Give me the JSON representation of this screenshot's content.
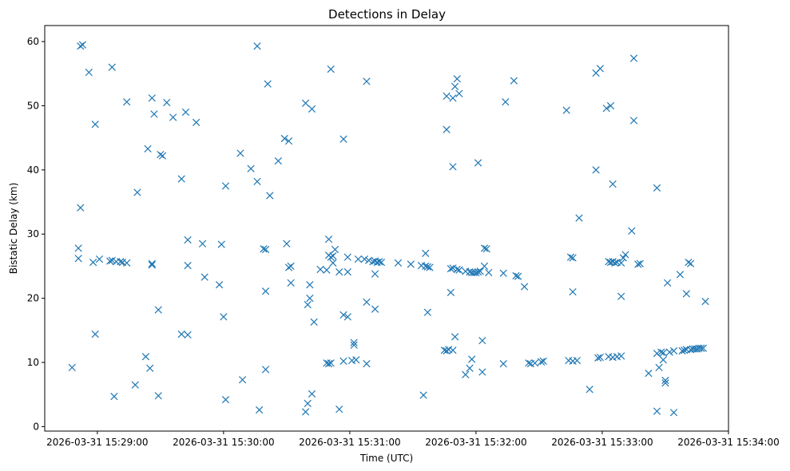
{
  "chart_data": {
    "type": "scatter",
    "title": "Detections in Delay",
    "xlabel": "Time (UTC)",
    "ylabel": "Bistatic Delay (km)",
    "marker": "x",
    "color": "#1f77b4",
    "grid": false,
    "legend": "none",
    "x_unit": "UTC time (HH:MM:SS) on 2026-03-31",
    "xlim": [
      "15:28:35",
      "15:34:00"
    ],
    "ylim": [
      -0.7,
      62.5
    ],
    "xticks": [
      {
        "value": "15:29:00",
        "label": "2026-03-31 15:29:00"
      },
      {
        "value": "15:30:00",
        "label": "2026-03-31 15:30:00"
      },
      {
        "value": "15:31:00",
        "label": "2026-03-31 15:31:00"
      },
      {
        "value": "15:32:00",
        "label": "2026-03-31 15:32:00"
      },
      {
        "value": "15:33:00",
        "label": "2026-03-31 15:33:00"
      },
      {
        "value": "15:34:00",
        "label": "2026-03-31 15:34:00"
      }
    ],
    "yticks": [
      0,
      10,
      20,
      30,
      40,
      50,
      60
    ],
    "points": [
      [
        "15:28:48",
        9.2
      ],
      [
        "15:28:51",
        27.8
      ],
      [
        "15:28:51",
        26.2
      ],
      [
        "15:28:52",
        59.3
      ],
      [
        "15:28:53",
        59.5
      ],
      [
        "15:28:52",
        34.1
      ],
      [
        "15:28:56",
        55.2
      ],
      [
        "15:28:59",
        47.1
      ],
      [
        "15:28:58",
        25.6
      ],
      [
        "15:28:59",
        14.4
      ],
      [
        "15:29:01",
        26.1
      ],
      [
        "15:29:06",
        25.8
      ],
      [
        "15:29:07",
        25.9
      ],
      [
        "15:29:09",
        25.7
      ],
      [
        "15:29:11",
        25.7
      ],
      [
        "15:29:12",
        25.6
      ],
      [
        "15:29:14",
        25.5
      ],
      [
        "15:29:07",
        56.0
      ],
      [
        "15:29:08",
        4.7
      ],
      [
        "15:29:14",
        50.6
      ],
      [
        "15:29:19",
        36.5
      ],
      [
        "15:29:18",
        6.5
      ],
      [
        "15:29:24",
        43.3
      ],
      [
        "15:29:23",
        10.9
      ],
      [
        "15:29:25",
        9.1
      ],
      [
        "15:29:26",
        51.2
      ],
      [
        "15:29:27",
        48.7
      ],
      [
        "15:29:26",
        25.4
      ],
      [
        "15:29:26",
        25.2
      ],
      [
        "15:29:29",
        18.2
      ],
      [
        "15:29:29",
        4.8
      ],
      [
        "15:29:30",
        42.4
      ],
      [
        "15:29:31",
        42.2
      ],
      [
        "15:29:33",
        50.5
      ],
      [
        "15:29:36",
        48.2
      ],
      [
        "15:29:40",
        38.6
      ],
      [
        "15:29:40",
        14.4
      ],
      [
        "15:29:42",
        49.0
      ],
      [
        "15:29:43",
        29.1
      ],
      [
        "15:29:43",
        25.1
      ],
      [
        "15:29:43",
        14.3
      ],
      [
        "15:29:47",
        47.4
      ],
      [
        "15:29:50",
        28.5
      ],
      [
        "15:29:51",
        23.3
      ],
      [
        "15:29:58",
        22.1
      ],
      [
        "15:29:59",
        28.4
      ],
      [
        "15:30:00",
        17.1
      ],
      [
        "15:30:01",
        37.5
      ],
      [
        "15:30:01",
        4.2
      ],
      [
        "15:30:08",
        42.6
      ],
      [
        "15:30:09",
        7.3
      ],
      [
        "15:30:13",
        40.2
      ],
      [
        "15:30:16",
        59.3
      ],
      [
        "15:30:16",
        38.2
      ],
      [
        "15:30:17",
        2.6
      ],
      [
        "15:30:19",
        27.7
      ],
      [
        "15:30:20",
        27.6
      ],
      [
        "15:30:20",
        21.1
      ],
      [
        "15:30:20",
        8.9
      ],
      [
        "15:30:21",
        53.4
      ],
      [
        "15:30:22",
        36.0
      ],
      [
        "15:30:26",
        41.4
      ],
      [
        "15:30:29",
        44.9
      ],
      [
        "15:30:30",
        28.5
      ],
      [
        "15:30:31",
        44.5
      ],
      [
        "15:30:32",
        25.0
      ],
      [
        "15:30:31",
        24.8
      ],
      [
        "15:30:32",
        22.4
      ],
      [
        "15:30:39",
        50.4
      ],
      [
        "15:30:40",
        19.0
      ],
      [
        "15:30:39",
        2.3
      ],
      [
        "15:30:40",
        3.6
      ],
      [
        "15:30:41",
        20.0
      ],
      [
        "15:30:42",
        49.5
      ],
      [
        "15:30:41",
        22.1
      ],
      [
        "15:30:42",
        5.1
      ],
      [
        "15:30:43",
        16.3
      ],
      [
        "15:30:46",
        24.5
      ],
      [
        "15:30:49",
        24.4
      ],
      [
        "15:30:50",
        29.2
      ],
      [
        "15:30:50",
        26.7
      ],
      [
        "15:30:51",
        26.4
      ],
      [
        "15:30:52",
        26.6
      ],
      [
        "15:30:52",
        25.5
      ],
      [
        "15:30:49",
        9.9
      ],
      [
        "15:30:50",
        9.8
      ],
      [
        "15:30:51",
        9.9
      ],
      [
        "15:30:51",
        55.7
      ],
      [
        "15:30:53",
        27.6
      ],
      [
        "15:30:55",
        24.1
      ],
      [
        "15:30:55",
        2.7
      ],
      [
        "15:30:57",
        44.8
      ],
      [
        "15:30:57",
        17.4
      ],
      [
        "15:30:57",
        10.2
      ],
      [
        "15:30:59",
        17.1
      ],
      [
        "15:30:59",
        24.1
      ],
      [
        "15:30:59",
        26.4
      ],
      [
        "15:31:02",
        12.7
      ],
      [
        "15:31:02",
        13.1
      ],
      [
        "15:31:01",
        10.3
      ],
      [
        "15:31:03",
        10.4
      ],
      [
        "15:31:04",
        26.1
      ],
      [
        "15:31:07",
        26.1
      ],
      [
        "15:31:09",
        25.9
      ],
      [
        "15:31:11",
        25.7
      ],
      [
        "15:31:12",
        25.8
      ],
      [
        "15:31:13",
        25.6
      ],
      [
        "15:31:14",
        25.7
      ],
      [
        "15:31:15",
        25.6
      ],
      [
        "15:31:08",
        53.8
      ],
      [
        "15:31:08",
        19.4
      ],
      [
        "15:31:08",
        9.8
      ],
      [
        "15:31:12",
        18.3
      ],
      [
        "15:31:12",
        23.8
      ],
      [
        "15:31:23",
        25.5
      ],
      [
        "15:31:29",
        25.3
      ],
      [
        "15:31:34",
        25.1
      ],
      [
        "15:31:36",
        27.0
      ],
      [
        "15:31:36",
        25.0
      ],
      [
        "15:31:37",
        24.9
      ],
      [
        "15:31:38",
        24.8
      ],
      [
        "15:31:35",
        4.9
      ],
      [
        "15:31:37",
        17.8
      ],
      [
        "15:31:46",
        51.5
      ],
      [
        "15:31:46",
        46.3
      ],
      [
        "15:31:49",
        51.2
      ],
      [
        "15:31:50",
        53.0
      ],
      [
        "15:31:51",
        54.2
      ],
      [
        "15:31:52",
        51.9
      ],
      [
        "15:31:49",
        40.5
      ],
      [
        "15:31:50",
        14.0
      ],
      [
        "15:31:48",
        20.9
      ],
      [
        "15:31:48",
        24.6
      ],
      [
        "15:31:49",
        24.7
      ],
      [
        "15:31:51",
        24.5
      ],
      [
        "15:31:55",
        24.2
      ],
      [
        "15:31:57",
        24.1
      ],
      [
        "15:31:58",
        24.0
      ],
      [
        "15:31:59",
        24.0
      ],
      [
        "15:32:00",
        24.0
      ],
      [
        "15:32:01",
        24.1
      ],
      [
        "15:32:02",
        24.2
      ],
      [
        "15:31:45",
        11.9
      ],
      [
        "15:31:46",
        11.8
      ],
      [
        "15:31:47",
        12.0
      ],
      [
        "15:31:49",
        11.9
      ],
      [
        "15:31:52",
        24.4
      ],
      [
        "15:31:55",
        8.1
      ],
      [
        "15:31:57",
        9.1
      ],
      [
        "15:31:58",
        10.5
      ],
      [
        "15:32:01",
        41.1
      ],
      [
        "15:32:03",
        13.4
      ],
      [
        "15:32:03",
        8.5
      ],
      [
        "15:32:04",
        27.8
      ],
      [
        "15:32:04",
        25.0
      ],
      [
        "15:32:05",
        27.7
      ],
      [
        "15:32:06",
        24.0
      ],
      [
        "15:32:14",
        50.6
      ],
      [
        "15:32:13",
        23.9
      ],
      [
        "15:32:13",
        9.8
      ],
      [
        "15:32:18",
        53.9
      ],
      [
        "15:32:19",
        23.5
      ],
      [
        "15:32:20",
        23.4
      ],
      [
        "15:32:23",
        21.8
      ],
      [
        "15:32:25",
        9.9
      ],
      [
        "15:32:26",
        9.8
      ],
      [
        "15:32:28",
        9.9
      ],
      [
        "15:32:31",
        10.1
      ],
      [
        "15:32:32",
        10.2
      ],
      [
        "15:32:43",
        49.3
      ],
      [
        "15:32:44",
        10.3
      ],
      [
        "15:32:46",
        10.2
      ],
      [
        "15:32:45",
        26.4
      ],
      [
        "15:32:46",
        26.3
      ],
      [
        "15:32:46",
        21.0
      ],
      [
        "15:32:48",
        10.3
      ],
      [
        "15:32:49",
        32.5
      ],
      [
        "15:32:54",
        5.8
      ],
      [
        "15:32:57",
        40.0
      ],
      [
        "15:32:57",
        55.1
      ],
      [
        "15:32:59",
        55.8
      ],
      [
        "15:32:58",
        10.7
      ],
      [
        "15:32:59",
        10.8
      ],
      [
        "15:33:02",
        49.6
      ],
      [
        "15:33:04",
        50.0
      ],
      [
        "15:33:03",
        25.7
      ],
      [
        "15:33:04",
        25.6
      ],
      [
        "15:33:05",
        25.7
      ],
      [
        "15:33:06",
        25.5
      ],
      [
        "15:33:07",
        25.6
      ],
      [
        "15:33:09",
        25.5
      ],
      [
        "15:33:05",
        37.8
      ],
      [
        "15:33:03",
        10.9
      ],
      [
        "15:33:05",
        10.8
      ],
      [
        "15:33:07",
        10.9
      ],
      [
        "15:33:09",
        11.0
      ],
      [
        "15:33:09",
        20.3
      ],
      [
        "15:33:10",
        26.3
      ],
      [
        "15:33:11",
        26.8
      ],
      [
        "15:33:14",
        30.5
      ],
      [
        "15:33:15",
        57.4
      ],
      [
        "15:33:15",
        47.7
      ],
      [
        "15:33:17",
        25.3
      ],
      [
        "15:33:18",
        25.4
      ],
      [
        "15:33:22",
        8.3
      ],
      [
        "15:33:26",
        37.2
      ],
      [
        "15:33:26",
        11.4
      ],
      [
        "15:33:26",
        2.4
      ],
      [
        "15:33:27",
        9.2
      ],
      [
        "15:33:28",
        11.6
      ],
      [
        "15:33:29",
        10.4
      ],
      [
        "15:33:29",
        11.5
      ],
      [
        "15:33:30",
        7.2
      ],
      [
        "15:33:30",
        6.8
      ],
      [
        "15:33:31",
        22.4
      ],
      [
        "15:33:32",
        11.6
      ],
      [
        "15:33:34",
        11.8
      ],
      [
        "15:33:34",
        2.2
      ],
      [
        "15:33:37",
        23.7
      ],
      [
        "15:33:38",
        11.8
      ],
      [
        "15:33:39",
        11.9
      ],
      [
        "15:33:40",
        20.7
      ],
      [
        "15:33:40",
        12.0
      ],
      [
        "15:33:41",
        25.6
      ],
      [
        "15:33:42",
        25.4
      ],
      [
        "15:33:42",
        12.0
      ],
      [
        "15:33:43",
        12.1
      ],
      [
        "15:33:44",
        12.1
      ],
      [
        "15:33:45",
        12.1
      ],
      [
        "15:33:46",
        12.2
      ],
      [
        "15:33:47",
        12.2
      ],
      [
        "15:33:48",
        12.2
      ],
      [
        "15:33:49",
        19.5
      ]
    ]
  }
}
